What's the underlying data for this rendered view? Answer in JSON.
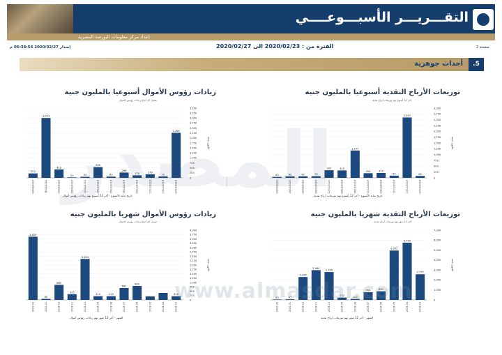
{
  "header": {
    "title": "التقـــريـــر الأسبـــوعــــي",
    "subtitle": "إعداد مركز معلومات البورصة المصرية",
    "page_label": "صفحة 2",
    "period_text": "الفترة من : 2020/02/23 الى 2020/02/27",
    "issued_text": "إصدار 2020/02/27 05:36:56 م"
  },
  "section": {
    "number": ".5",
    "title": "أحداث جوهرية"
  },
  "watermark": {
    "url": "www.almasdar.com",
    "arabic": "المصدر"
  },
  "colors": {
    "navy": "#163e6c",
    "gold": "#b79b68",
    "bar": "#1d4a7e"
  },
  "chart_data": [
    {
      "id": "dividends-weekly",
      "type": "bar",
      "title": "توزيعات الأرباح النقدية أسبوعيا بالمليون جنيه",
      "subtitle": "آخر 12 أسبوع بهم توزيعات أرباح نقدية",
      "xlabel": "تاريخ بداية الأسبوع - آخر 12 أسبوع بهم توزيعات أرباح نقدية",
      "ylabel": "مليون جنيه",
      "ylim": [
        0,
        3000
      ],
      "yticks": [
        "0",
        "250",
        "500",
        "750",
        "1,000",
        "1,250",
        "1,500",
        "1,750",
        "2,000",
        "2,250",
        "2,500",
        "2,750",
        "3,000"
      ],
      "categories": [
        "23/02/2020",
        "16/02/2020",
        "02/02/2020",
        "26/01/2020",
        "12/01/2020",
        "29/12/2019",
        "08/12/2019",
        "01/12/2019",
        "24/11/2019",
        "17/11/2019",
        "10/11/2019",
        "27/10/2019"
      ],
      "values": [
        40,
        62,
        67,
        70,
        327,
        319,
        1177,
        200,
        211,
        95,
        2597,
        82
      ],
      "labels": [
        "40",
        "62",
        "67",
        "70",
        "327",
        "319",
        "1,177",
        "200",
        "211",
        "95",
        "2,597",
        "82"
      ]
    },
    {
      "id": "capital-weekly",
      "type": "bar",
      "title": "زيادات رؤوس الأموال أسبوعيا بالمليون جنيه",
      "subtitle": "تشمل كل أنواع زيادات رؤوس الأموال",
      "xlabel": "تاريخ بداية الأسبوع - آخر 12 أسبوع بهم زيادات رؤوس أموال",
      "ylabel": "مليون جنيه",
      "ylim": [
        0,
        3500
      ],
      "yticks": [
        "0",
        "250",
        "500",
        "750",
        "1,000",
        "1,250",
        "1,500",
        "1,750",
        "2,000",
        "2,250",
        "2,500",
        "2,750",
        "3,000",
        "3,250",
        "3,500"
      ],
      "categories": [
        "23/02/2020",
        "16/02/2020",
        "02/02/2020",
        "26/01/2020",
        "12/01/2020",
        "29/12/2019",
        "15/12/2019",
        "08/12/2019",
        "24/11/2019",
        "17/11/2019",
        "10/11/2019",
        "27/10/2019"
      ],
      "values": [
        222,
        3003,
        422,
        25,
        53,
        539,
        63,
        266,
        125,
        179,
        72,
        2260
      ],
      "labels": [
        "222",
        "3,003",
        "422",
        "25",
        "53",
        "539",
        "63",
        "266",
        "125",
        "179",
        "72",
        "2,260"
      ]
    },
    {
      "id": "dividends-monthly",
      "type": "bar",
      "title": "توزيعات الأرباح النقدية شهريا بالمليون جنيه",
      "subtitle": "آخر 12 شهر بهم توزيعات أرباح نقدية",
      "xlabel": "الشهر - آخر 12 شهر بهم توزيعات أرباح نقدية",
      "ylabel": "مليون جنيه",
      "ylim": [
        0,
        7000
      ],
      "yticks": [
        "0",
        "1,000",
        "2,000",
        "3,000",
        "4,000",
        "5,000",
        "6,000",
        "7,000"
      ],
      "categories": [
        "2020-02",
        "2020-01",
        "2019-12",
        "2019-11",
        "2019-10",
        "2019-09",
        "2019-08",
        "2019-07",
        "2019-06",
        "2019-05",
        "2019-04",
        "2019-03"
      ],
      "values": [
        40,
        61,
        2295,
        2984,
        2795,
        232,
        102,
        769,
        865,
        4955,
        5740,
        2575
      ],
      "labels": [
        "40",
        "61",
        "2,295",
        "2,984",
        "2,795",
        "232",
        "102",
        "769",
        "865",
        "4,955",
        "5,740",
        "2,575"
      ]
    },
    {
      "id": "capital-monthly",
      "type": "bar",
      "title": "زيادات رؤوس الأموال شهريا بالمليون جنيه",
      "subtitle": "تشمل كل أنواع زيادات رؤوس الأموال",
      "xlabel": "الشهر - آخر 12 شهر بهم زيادات رؤوس أموال",
      "ylabel": "مليون جنيه",
      "ylim": [
        0,
        4000
      ],
      "yticks": [
        "0",
        "250",
        "500",
        "750",
        "1,000",
        "1,250",
        "1,500",
        "1,750",
        "2,000",
        "2,250",
        "2,500",
        "2,750",
        "3,000",
        "3,250",
        "3,500",
        "3,750",
        "4,000"
      ],
      "categories": [
        "2020-02",
        "2020-01",
        "2019-12",
        "2019-11",
        "2019-10",
        "2019-09",
        "2019-08",
        "2019-07",
        "2019-06",
        "2019-05",
        "2019-04",
        "2019-03"
      ],
      "values": [
        3625,
        60,
        865,
        325,
        2349,
        214,
        213,
        681,
        800,
        200,
        400,
        212
      ],
      "labels": [
        "3,625",
        "60",
        "865",
        "325",
        "2,349",
        "214",
        "213",
        "681",
        "800",
        "",
        "",
        "212"
      ]
    }
  ]
}
